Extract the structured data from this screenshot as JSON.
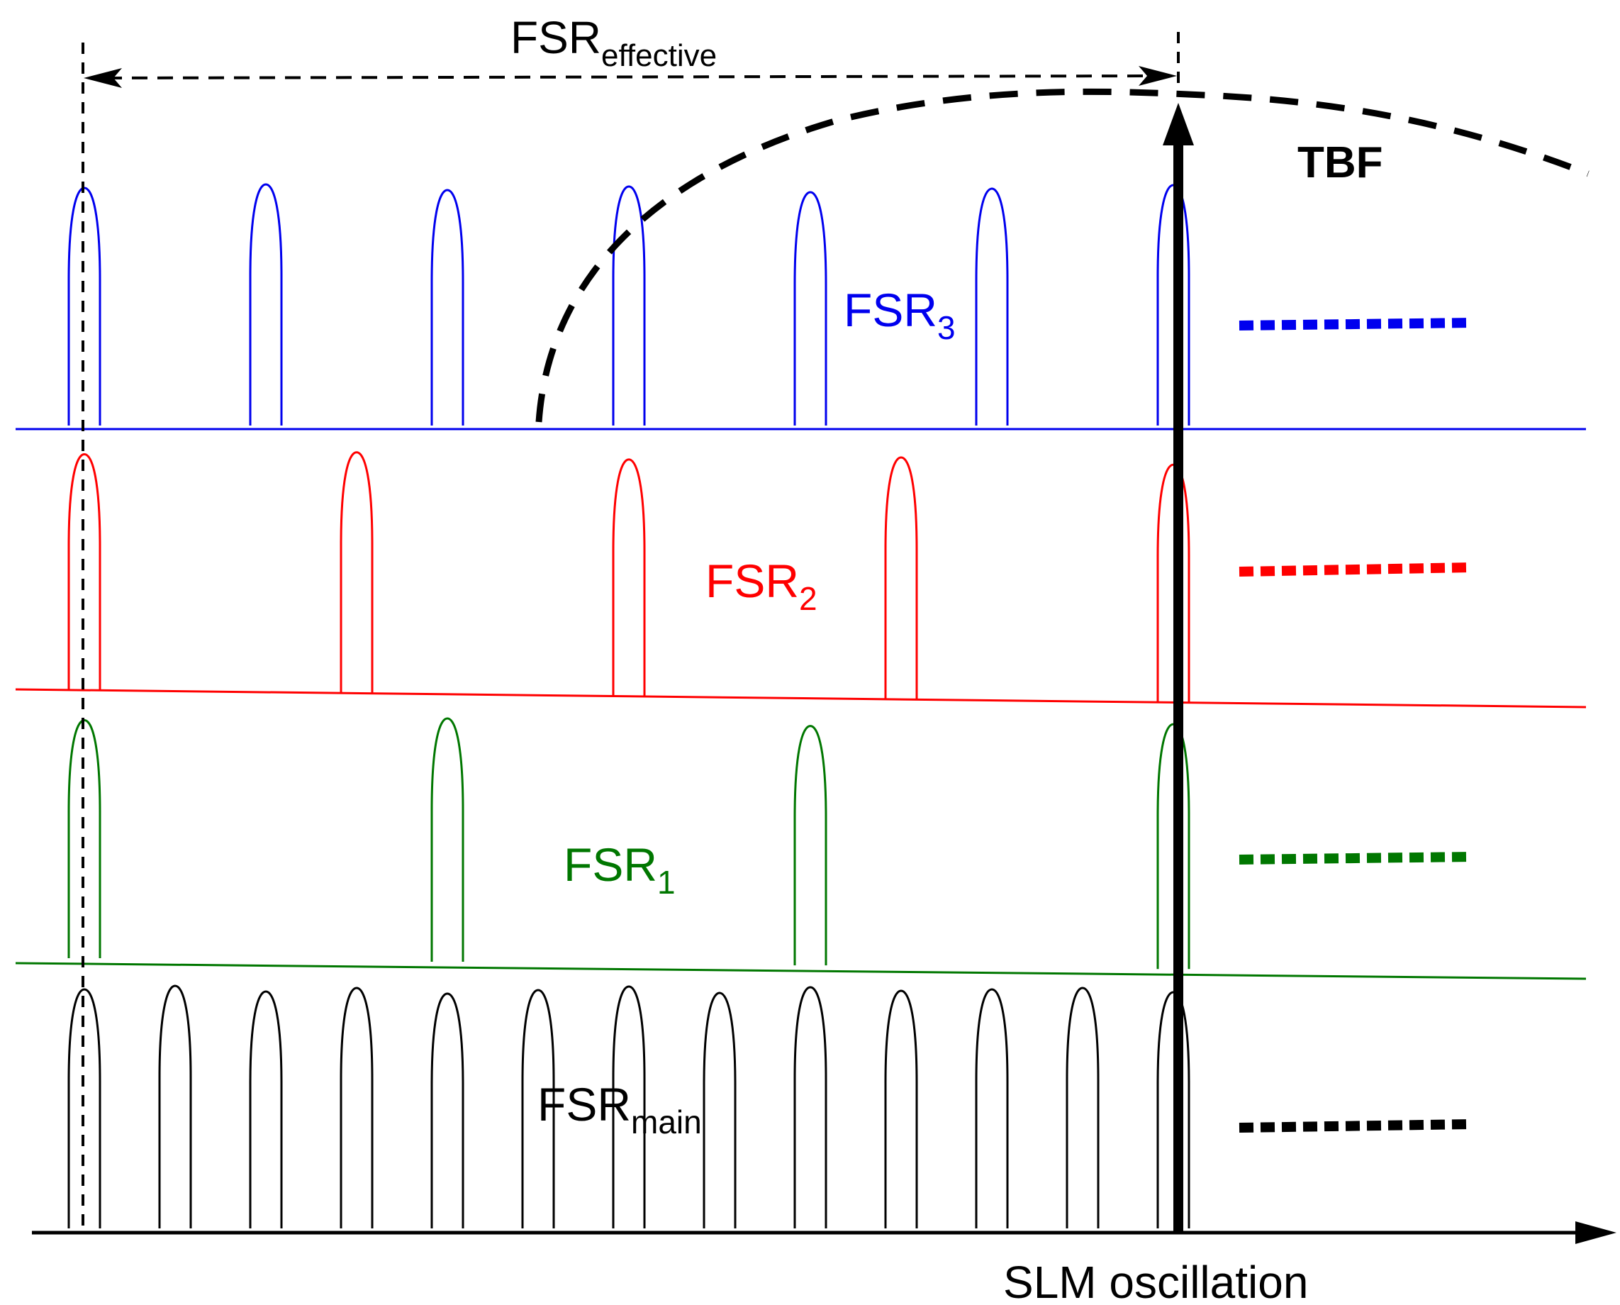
{
  "labels": {
    "fsr_effective": {
      "main": "FSR",
      "sub": "effective"
    },
    "tbf": "TBF",
    "fsr3": {
      "main": "FSR",
      "sub": "3"
    },
    "fsr2": {
      "main": "FSR",
      "sub": "2"
    },
    "fsr1": {
      "main": "FSR",
      "sub": "1"
    },
    "fsr_main": {
      "main": "FSR",
      "sub": "main"
    },
    "x_axis": "SLM oscillation"
  },
  "colors": {
    "fsr3": "#0000ee",
    "fsr2": "#ff0000",
    "fsr1": "#007700",
    "fsr_main": "#000000"
  },
  "series": [
    {
      "key": "fsr3",
      "name": "FSR3",
      "peaks": 7
    },
    {
      "key": "fsr2",
      "name": "FSR2",
      "peaks": 5
    },
    {
      "key": "fsr1",
      "name": "FSR1",
      "peaks": 4
    },
    {
      "key": "fsr_main",
      "name": "FSRmain",
      "peaks": 13
    }
  ]
}
